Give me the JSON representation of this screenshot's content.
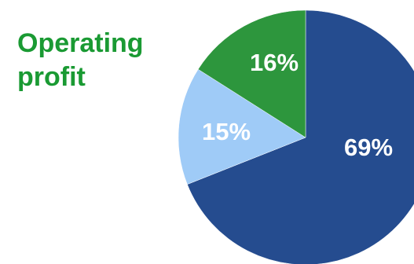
{
  "title": {
    "line1": "Operating",
    "line2": "profit",
    "color": "#1a9a33"
  },
  "chart_data": {
    "type": "pie",
    "title": "Operating profit",
    "start_angle_deg": 0,
    "direction": "clockwise",
    "slices": [
      {
        "value": 69,
        "label": "69%",
        "color": "#254c8f"
      },
      {
        "value": 15,
        "label": "15%",
        "color": "#9fcbf7"
      },
      {
        "value": 16,
        "label": "16%",
        "color": "#2d963d"
      }
    ]
  }
}
